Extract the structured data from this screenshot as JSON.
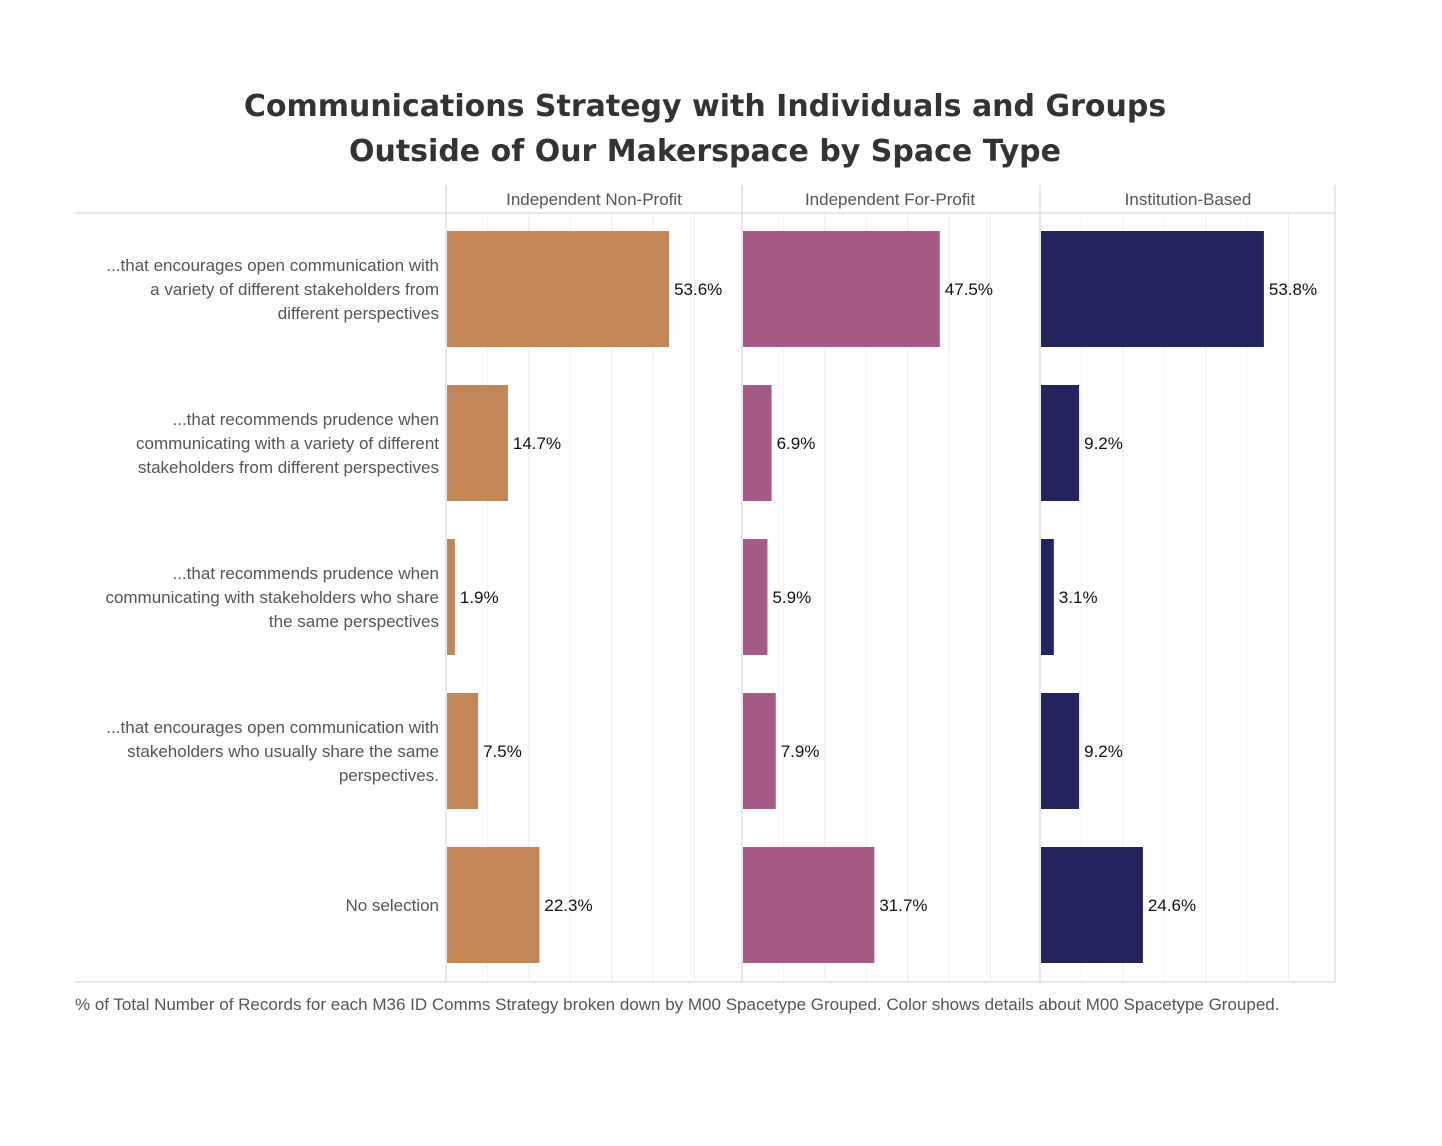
{
  "chart_data": {
    "type": "bar",
    "orientation": "horizontal",
    "title": [
      "Communications Strategy with Individuals and Groups",
      "Outside of Our Makerspace by Space Type"
    ],
    "panels": [
      "Independent Non-Profit",
      "Independent For-Profit",
      "Institution-Based"
    ],
    "categories": [
      "...that encourages open communication with a variety of different stakeholders from different perspectives",
      "...that recommends prudence when communicating with a variety of different stakeholders from different perspectives",
      "...that recommends prudence when communicating with stakeholders who share the same perspectives",
      "...that encourages open communication with stakeholders who usually share the same perspectives.",
      "No selection"
    ],
    "category_lines": [
      [
        "...that encourages open communication with",
        "a variety of different stakeholders from",
        "different perspectives"
      ],
      [
        "...that recommends prudence when",
        "communicating with a variety of different",
        "stakeholders from different perspectives"
      ],
      [
        "...that recommends prudence when",
        "communicating with stakeholders who share",
        "the same perspectives"
      ],
      [
        "...that encourages open communication with",
        "stakeholders who usually share the same",
        "perspectives."
      ],
      [
        "No selection"
      ]
    ],
    "series": [
      {
        "name": "Independent Non-Profit",
        "color": "#c38757",
        "values": [
          53.6,
          14.7,
          1.9,
          7.5,
          22.3
        ],
        "labels": [
          "53.6%",
          "14.7%",
          "1.9%",
          "7.5%",
          "22.3%"
        ]
      },
      {
        "name": "Independent For-Profit",
        "color": "#a65a86",
        "values": [
          47.5,
          6.9,
          5.9,
          7.9,
          31.7
        ],
        "labels": [
          "47.5%",
          "6.9%",
          "5.9%",
          "7.9%",
          "31.7%"
        ]
      },
      {
        "name": "Institution-Based",
        "color": "#23235e",
        "values": [
          53.8,
          9.2,
          3.1,
          9.2,
          24.6
        ],
        "labels": [
          "53.8%",
          "9.2%",
          "3.1%",
          "9.2%",
          "24.6%"
        ]
      }
    ],
    "xlim": [
      0,
      70
    ],
    "grid_step": 20,
    "grid": true,
    "legend": "none"
  },
  "footnote": "% of Total Number of Records for each M36 ID Comms Strategy broken down by M00 Spacetype Grouped.  Color shows details about M00 Spacetype Grouped."
}
